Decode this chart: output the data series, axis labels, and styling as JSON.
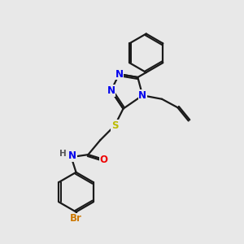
{
  "bg_color": "#e8e8e8",
  "bond_color": "#1a1a1a",
  "atom_colors": {
    "N": "#0000ee",
    "O": "#ee0000",
    "S": "#bbbb00",
    "Br": "#cc7700",
    "H": "#555555",
    "C": "#1a1a1a"
  },
  "bond_width": 1.6,
  "dbo": 0.055,
  "font_size_atom": 8.5,
  "font_size_h": 7.5
}
